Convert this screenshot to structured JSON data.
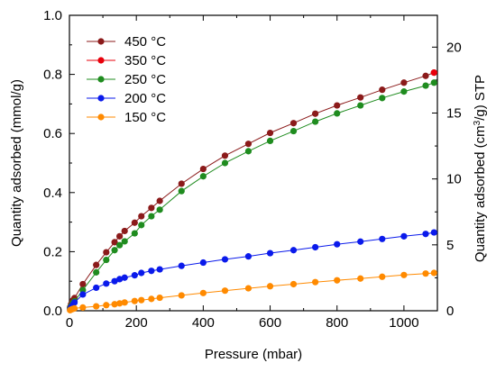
{
  "chart_data": {
    "type": "scatter",
    "xlabel": "Pressure (mbar)",
    "ylabel": "Quantity adsorbed (mmol/g)",
    "y2label_main": "Quantity adsorbed (cm",
    "y2label_sup": "3",
    "y2label_tail": "/g) STP",
    "xlim": [
      0,
      1100
    ],
    "ylim": [
      0,
      1.0
    ],
    "y2lim": [
      0,
      22.414
    ],
    "xticks": [
      0,
      200,
      400,
      600,
      800,
      1000
    ],
    "xtick_labels": [
      "0",
      "200",
      "400",
      "600",
      "800",
      "1000"
    ],
    "yticks": [
      0,
      0.2,
      0.4,
      0.6,
      0.8,
      1.0
    ],
    "ytick_labels": [
      "0.0",
      "0.2",
      "0.4",
      "0.6",
      "0.8",
      "1.0"
    ],
    "y2ticks": [
      0,
      5,
      10,
      15,
      20
    ],
    "y2tick_labels": [
      "0",
      "5",
      "10",
      "15",
      "20"
    ],
    "legend_position": "top-left",
    "series": [
      {
        "name": "450 °C",
        "color": "#8b1a1a",
        "x": [
          2,
          5,
          10,
          15,
          40,
          80,
          110,
          135,
          150,
          165,
          195,
          215,
          245,
          270,
          335,
          400,
          465,
          535,
          600,
          670,
          735,
          800,
          870,
          935,
          1000,
          1065,
          1090
        ],
        "y": [
          0.012,
          0.022,
          0.035,
          0.043,
          0.09,
          0.155,
          0.198,
          0.232,
          0.252,
          0.27,
          0.298,
          0.32,
          0.348,
          0.372,
          0.43,
          0.48,
          0.525,
          0.565,
          0.602,
          0.635,
          0.667,
          0.695,
          0.722,
          0.748,
          0.772,
          0.795,
          0.806
        ]
      },
      {
        "name": "350 °C",
        "color": "#e8000b",
        "x": [
          1090
        ],
        "y": [
          0.806
        ]
      },
      {
        "name": "250 °C",
        "color": "#1f8c1f",
        "x": [
          2,
          5,
          10,
          15,
          40,
          80,
          110,
          135,
          150,
          165,
          195,
          215,
          245,
          270,
          335,
          400,
          465,
          535,
          600,
          670,
          735,
          800,
          870,
          935,
          1000,
          1065,
          1090
        ],
        "y": [
          0.008,
          0.016,
          0.026,
          0.032,
          0.07,
          0.13,
          0.172,
          0.205,
          0.222,
          0.235,
          0.262,
          0.29,
          0.32,
          0.342,
          0.405,
          0.455,
          0.5,
          0.54,
          0.575,
          0.608,
          0.64,
          0.668,
          0.695,
          0.72,
          0.742,
          0.762,
          0.772
        ]
      },
      {
        "name": "200 °C",
        "color": "#0a1aeb",
        "x": [
          2,
          5,
          10,
          15,
          40,
          80,
          110,
          135,
          150,
          165,
          195,
          215,
          245,
          270,
          335,
          400,
          465,
          535,
          600,
          670,
          735,
          800,
          870,
          935,
          1000,
          1065,
          1090
        ],
        "y": [
          0.005,
          0.012,
          0.02,
          0.028,
          0.055,
          0.078,
          0.092,
          0.1,
          0.107,
          0.112,
          0.12,
          0.128,
          0.135,
          0.14,
          0.152,
          0.163,
          0.174,
          0.184,
          0.195,
          0.205,
          0.215,
          0.225,
          0.234,
          0.243,
          0.252,
          0.26,
          0.265
        ]
      },
      {
        "name": "150 °C",
        "color": "#ff8a00",
        "x": [
          2,
          5,
          10,
          15,
          40,
          80,
          110,
          135,
          150,
          165,
          195,
          215,
          245,
          270,
          335,
          400,
          465,
          535,
          600,
          670,
          735,
          800,
          870,
          935,
          1000,
          1065,
          1090
        ],
        "y": [
          0.002,
          0.004,
          0.006,
          0.008,
          0.011,
          0.015,
          0.019,
          0.022,
          0.025,
          0.028,
          0.033,
          0.036,
          0.04,
          0.044,
          0.052,
          0.06,
          0.068,
          0.076,
          0.083,
          0.09,
          0.097,
          0.103,
          0.109,
          0.115,
          0.121,
          0.126,
          0.128
        ]
      }
    ]
  }
}
